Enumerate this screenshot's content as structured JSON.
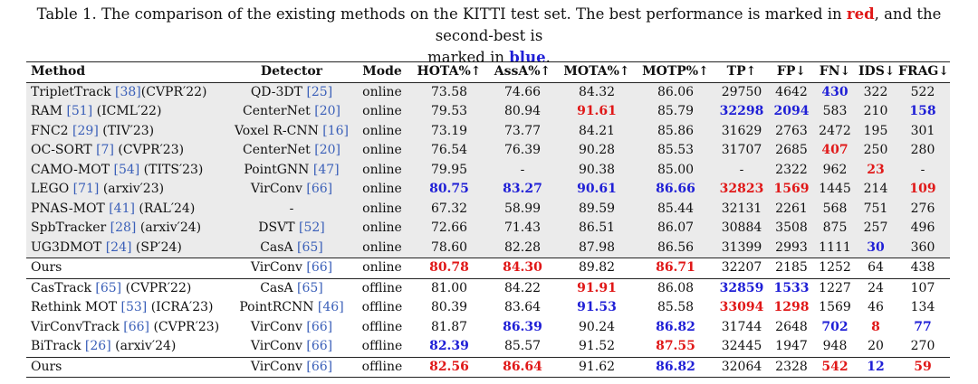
{
  "caption": {
    "line1_pre": "Table 1. The comparison of the existing methods on the KITTI test set. The best performance is marked in",
    "red_word": "red",
    "line1_mid": ", and the second-best is",
    "line2_pre": "marked in",
    "blue_word": "blue",
    "line2_post": "."
  },
  "columns": [
    "Method",
    "Detector",
    "Mode",
    "HOTA%↑",
    "AssA%↑",
    "MOTA%↑",
    "MOTP%↑",
    "TP↑",
    "FP↓",
    "FN↓",
    "IDS↓",
    "FRAG↓"
  ],
  "colors": {
    "best": "#e01818",
    "second": "#1f1fd6",
    "ref": "#3a5fb8",
    "shade": "#ebebeb"
  },
  "rows": [
    {
      "method": [
        "TripletTrack ",
        {
          "ref": "[38]"
        },
        "(CVPR′22)"
      ],
      "detector": [
        "QD-3DT ",
        {
          "ref": "[25]"
        }
      ],
      "mode": "online",
      "metrics": [
        {
          "v": "73.58"
        },
        {
          "v": "74.66"
        },
        {
          "v": "84.32"
        },
        {
          "v": "86.06"
        },
        {
          "v": "29750"
        },
        {
          "v": "4642"
        },
        {
          "v": "430",
          "hl": "b"
        },
        {
          "v": "322"
        },
        {
          "v": "522"
        }
      ],
      "group": "gray"
    },
    {
      "method": [
        "RAM ",
        {
          "ref": "[51]"
        },
        " (ICML′22)"
      ],
      "detector": [
        "CenterNet ",
        {
          "ref": "[20]"
        }
      ],
      "mode": "online",
      "metrics": [
        {
          "v": "79.53"
        },
        {
          "v": "80.94"
        },
        {
          "v": "91.61",
          "hl": "r"
        },
        {
          "v": "85.79"
        },
        {
          "v": "32298",
          "hl": "b"
        },
        {
          "v": "2094",
          "hl": "b"
        },
        {
          "v": "583"
        },
        {
          "v": "210"
        },
        {
          "v": "158",
          "hl": "b"
        }
      ],
      "group": "gray"
    },
    {
      "method": [
        "FNC2 ",
        {
          "ref": "[29]"
        },
        " (TIV′23)"
      ],
      "detector": [
        "Voxel R-CNN ",
        {
          "ref": "[16]"
        }
      ],
      "mode": "online",
      "metrics": [
        {
          "v": "73.19"
        },
        {
          "v": "73.77"
        },
        {
          "v": "84.21"
        },
        {
          "v": "85.86"
        },
        {
          "v": "31629"
        },
        {
          "v": "2763"
        },
        {
          "v": "2472"
        },
        {
          "v": "195"
        },
        {
          "v": "301"
        }
      ],
      "group": "gray"
    },
    {
      "method": [
        "OC-SORT ",
        {
          "ref": "[7]"
        },
        " (CVPR′23)"
      ],
      "detector": [
        "CenterNet ",
        {
          "ref": "[20]"
        }
      ],
      "mode": "online",
      "metrics": [
        {
          "v": "76.54"
        },
        {
          "v": "76.39"
        },
        {
          "v": "90.28"
        },
        {
          "v": "85.53"
        },
        {
          "v": "31707"
        },
        {
          "v": "2685"
        },
        {
          "v": "407",
          "hl": "r"
        },
        {
          "v": "250"
        },
        {
          "v": "280"
        }
      ],
      "group": "gray"
    },
    {
      "method": [
        "CAMO-MOT ",
        {
          "ref": "[54]"
        },
        " (TITS′23)"
      ],
      "detector": [
        "PointGNN ",
        {
          "ref": "[47]"
        }
      ],
      "mode": "online",
      "metrics": [
        {
          "v": "79.95"
        },
        {
          "v": "-"
        },
        {
          "v": "90.38"
        },
        {
          "v": "85.00"
        },
        {
          "v": "-"
        },
        {
          "v": "2322"
        },
        {
          "v": "962"
        },
        {
          "v": "23",
          "hl": "r"
        },
        {
          "v": "-"
        }
      ],
      "group": "gray"
    },
    {
      "method": [
        "LEGO ",
        {
          "ref": "[71]"
        },
        " (arxiv′23)"
      ],
      "detector": [
        "VirConv ",
        {
          "ref": "[66]"
        }
      ],
      "mode": "online",
      "metrics": [
        {
          "v": "80.75",
          "hl": "b"
        },
        {
          "v": "83.27",
          "hl": "b"
        },
        {
          "v": "90.61",
          "hl": "b"
        },
        {
          "v": "86.66",
          "hl": "b"
        },
        {
          "v": "32823",
          "hl": "r"
        },
        {
          "v": "1569",
          "hl": "r"
        },
        {
          "v": "1445"
        },
        {
          "v": "214"
        },
        {
          "v": "109",
          "hl": "r"
        }
      ],
      "group": "gray"
    },
    {
      "method": [
        "PNAS-MOT ",
        {
          "ref": "[41]"
        },
        " (RAL′24)"
      ],
      "detector": [
        "-"
      ],
      "mode": "online",
      "metrics": [
        {
          "v": "67.32"
        },
        {
          "v": "58.99"
        },
        {
          "v": "89.59"
        },
        {
          "v": "85.44"
        },
        {
          "v": "32131"
        },
        {
          "v": "2261"
        },
        {
          "v": "568"
        },
        {
          "v": "751"
        },
        {
          "v": "276"
        }
      ],
      "group": "gray"
    },
    {
      "method": [
        "SpbTracker ",
        {
          "ref": "[28]"
        },
        " (arxiv′24)"
      ],
      "detector": [
        "DSVT ",
        {
          "ref": "[52]"
        }
      ],
      "mode": "online",
      "metrics": [
        {
          "v": "72.66"
        },
        {
          "v": "71.43"
        },
        {
          "v": "86.51"
        },
        {
          "v": "86.07"
        },
        {
          "v": "30884"
        },
        {
          "v": "3508"
        },
        {
          "v": "875"
        },
        {
          "v": "257"
        },
        {
          "v": "496"
        }
      ],
      "group": "gray"
    },
    {
      "method": [
        "UG3DMOT ",
        {
          "ref": "[24]"
        },
        " (SP′24)"
      ],
      "detector": [
        "CasA ",
        {
          "ref": "[65]"
        }
      ],
      "mode": "online",
      "metrics": [
        {
          "v": "78.60"
        },
        {
          "v": "82.28"
        },
        {
          "v": "87.98"
        },
        {
          "v": "86.56"
        },
        {
          "v": "31399"
        },
        {
          "v": "2993"
        },
        {
          "v": "1111"
        },
        {
          "v": "30",
          "hl": "b"
        },
        {
          "v": "360"
        }
      ],
      "group": "gray"
    },
    {
      "method": [
        "Ours"
      ],
      "detector": [
        "VirConv ",
        {
          "ref": "[66]"
        }
      ],
      "mode": "online",
      "metrics": [
        {
          "v": "80.78",
          "hl": "r"
        },
        {
          "v": "84.30",
          "hl": "r"
        },
        {
          "v": "89.82"
        },
        {
          "v": "86.71",
          "hl": "r"
        },
        {
          "v": "32207"
        },
        {
          "v": "2185"
        },
        {
          "v": "1252"
        },
        {
          "v": "64"
        },
        {
          "v": "438"
        }
      ],
      "group": "ours",
      "rule": true
    },
    {
      "method": [
        "CasTrack ",
        {
          "ref": "[65]"
        },
        " (CVPR′22)"
      ],
      "detector": [
        "CasA ",
        {
          "ref": "[65]"
        }
      ],
      "mode": "offline",
      "metrics": [
        {
          "v": "81.00"
        },
        {
          "v": "84.22"
        },
        {
          "v": "91.91",
          "hl": "r"
        },
        {
          "v": "86.08"
        },
        {
          "v": "32859",
          "hl": "b"
        },
        {
          "v": "1533",
          "hl": "b"
        },
        {
          "v": "1227"
        },
        {
          "v": "24"
        },
        {
          "v": "107"
        }
      ],
      "group": "plain",
      "rule": true
    },
    {
      "method": [
        "Rethink MOT ",
        {
          "ref": "[53]"
        },
        " (ICRA′23)"
      ],
      "detector": [
        "PointRCNN ",
        {
          "ref": "[46]"
        }
      ],
      "mode": "offline",
      "metrics": [
        {
          "v": "80.39"
        },
        {
          "v": "83.64"
        },
        {
          "v": "91.53",
          "hl": "b"
        },
        {
          "v": "85.58"
        },
        {
          "v": "33094",
          "hl": "r"
        },
        {
          "v": "1298",
          "hl": "r"
        },
        {
          "v": "1569"
        },
        {
          "v": "46"
        },
        {
          "v": "134"
        }
      ],
      "group": "plain"
    },
    {
      "method": [
        "VirConvTrack ",
        {
          "ref": "[66]"
        },
        " (CVPR′23)"
      ],
      "detector": [
        "VirConv ",
        {
          "ref": "[66]"
        }
      ],
      "mode": "offline",
      "metrics": [
        {
          "v": "81.87"
        },
        {
          "v": "86.39",
          "hl": "b"
        },
        {
          "v": "90.24"
        },
        {
          "v": "86.82",
          "hl": "b"
        },
        {
          "v": "31744"
        },
        {
          "v": "2648"
        },
        {
          "v": "702",
          "hl": "b"
        },
        {
          "v": "8",
          "hl": "r"
        },
        {
          "v": "77",
          "hl": "b"
        }
      ],
      "group": "plain"
    },
    {
      "method": [
        "BiTrack ",
        {
          "ref": "[26]"
        },
        " (arxiv′24)"
      ],
      "detector": [
        "VirConv ",
        {
          "ref": "[66]"
        }
      ],
      "mode": "offline",
      "metrics": [
        {
          "v": "82.39",
          "hl": "b"
        },
        {
          "v": "85.57"
        },
        {
          "v": "91.52"
        },
        {
          "v": "87.55",
          "hl": "r"
        },
        {
          "v": "32445"
        },
        {
          "v": "1947"
        },
        {
          "v": "948"
        },
        {
          "v": "20"
        },
        {
          "v": "270"
        }
      ],
      "group": "plain"
    },
    {
      "method": [
        "Ours"
      ],
      "detector": [
        "VirConv ",
        {
          "ref": "[66]"
        }
      ],
      "mode": "offline",
      "metrics": [
        {
          "v": "82.56",
          "hl": "r"
        },
        {
          "v": "86.64",
          "hl": "r"
        },
        {
          "v": "91.62"
        },
        {
          "v": "86.82",
          "hl": "b"
        },
        {
          "v": "32064"
        },
        {
          "v": "2328"
        },
        {
          "v": "542",
          "hl": "r"
        },
        {
          "v": "12",
          "hl": "b"
        },
        {
          "v": "59",
          "hl": "r"
        }
      ],
      "group": "ours",
      "rule": true,
      "last": true
    }
  ]
}
